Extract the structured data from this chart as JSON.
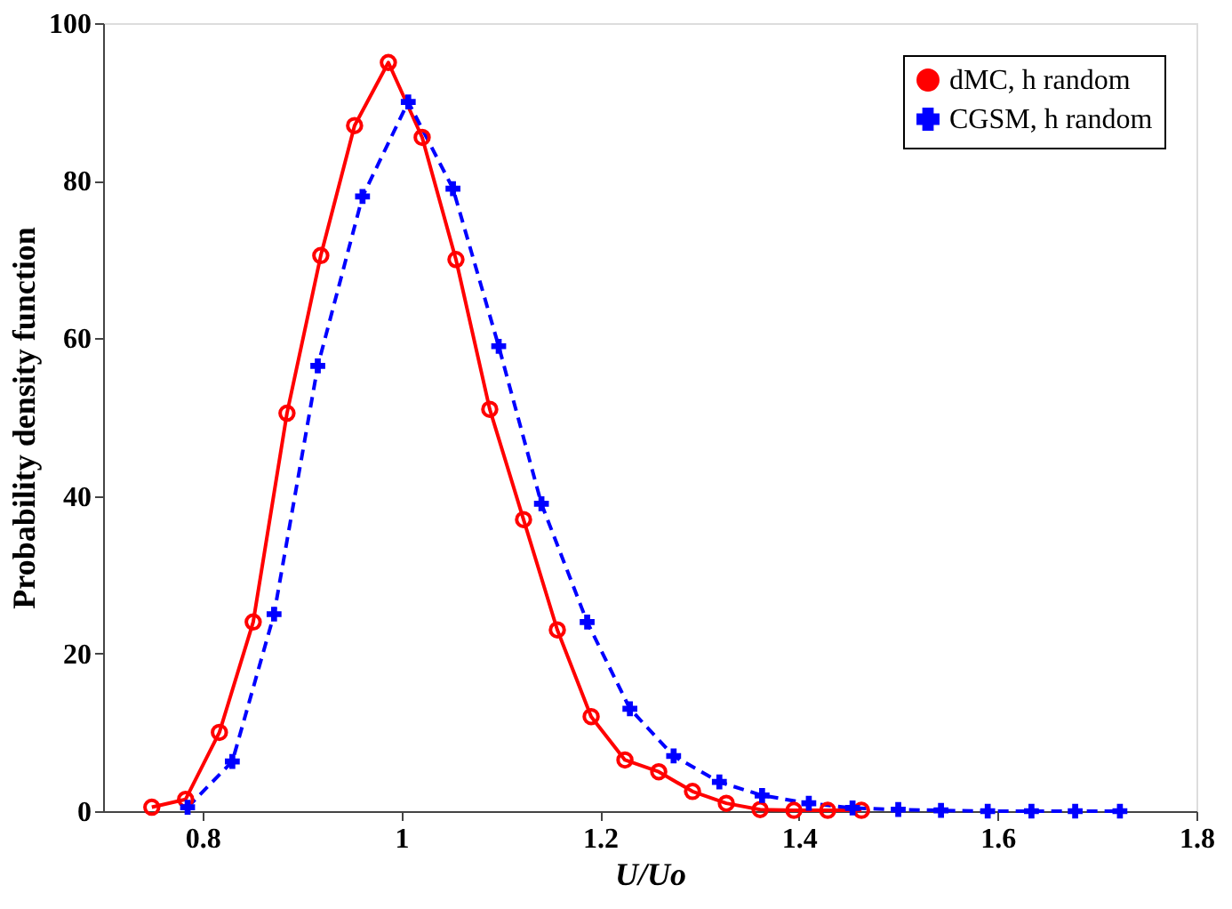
{
  "chart_data": {
    "type": "line",
    "xlabel": "U/Uo",
    "ylabel": "Probability density function",
    "xlim": [
      0.7,
      1.8
    ],
    "xticks": [
      0.8,
      {
        "value": 1,
        "label": "1"
      },
      1.2,
      1.4,
      1.6,
      1.8
    ],
    "ylim": [
      0,
      100
    ],
    "yticks": [
      0,
      20,
      40,
      60,
      80,
      100
    ],
    "grid": false,
    "legend": "top right",
    "series": [
      {
        "name": "dMC, h random",
        "color": "#ff0000",
        "marker": "circle",
        "line_style": "solid",
        "x": [
          0.749,
          0.783,
          0.817,
          0.851,
          0.885,
          0.919,
          0.953,
          0.987,
          1.021,
          1.055,
          1.089,
          1.123,
          1.157,
          1.191,
          1.225,
          1.259,
          1.293,
          1.327,
          1.361,
          1.395,
          1.429,
          1.463
        ],
        "values": [
          0.5,
          1.5,
          10,
          24,
          50.5,
          70.5,
          87,
          95,
          85.5,
          70,
          51,
          37,
          23,
          12,
          6.5,
          5,
          2.5,
          1,
          0.2,
          0.1,
          0.1,
          0.1
        ]
      },
      {
        "name": "CGSM, h random",
        "color": "#0000ff",
        "marker": "cross",
        "line_style": "dashed",
        "x": [
          0.785,
          0.83,
          0.872,
          0.916,
          0.961,
          1.007,
          1.052,
          1.098,
          1.141,
          1.187,
          1.23,
          1.274,
          1.32,
          1.363,
          1.41,
          1.454,
          1.5,
          1.543,
          1.59,
          1.634,
          1.678,
          1.723
        ],
        "values": [
          0.5,
          6.3,
          25,
          56.5,
          78,
          90,
          79,
          59,
          39,
          24,
          13,
          7,
          3.7,
          2,
          1,
          0.4,
          0.2,
          0.1,
          0,
          0,
          0,
          0
        ]
      }
    ]
  }
}
